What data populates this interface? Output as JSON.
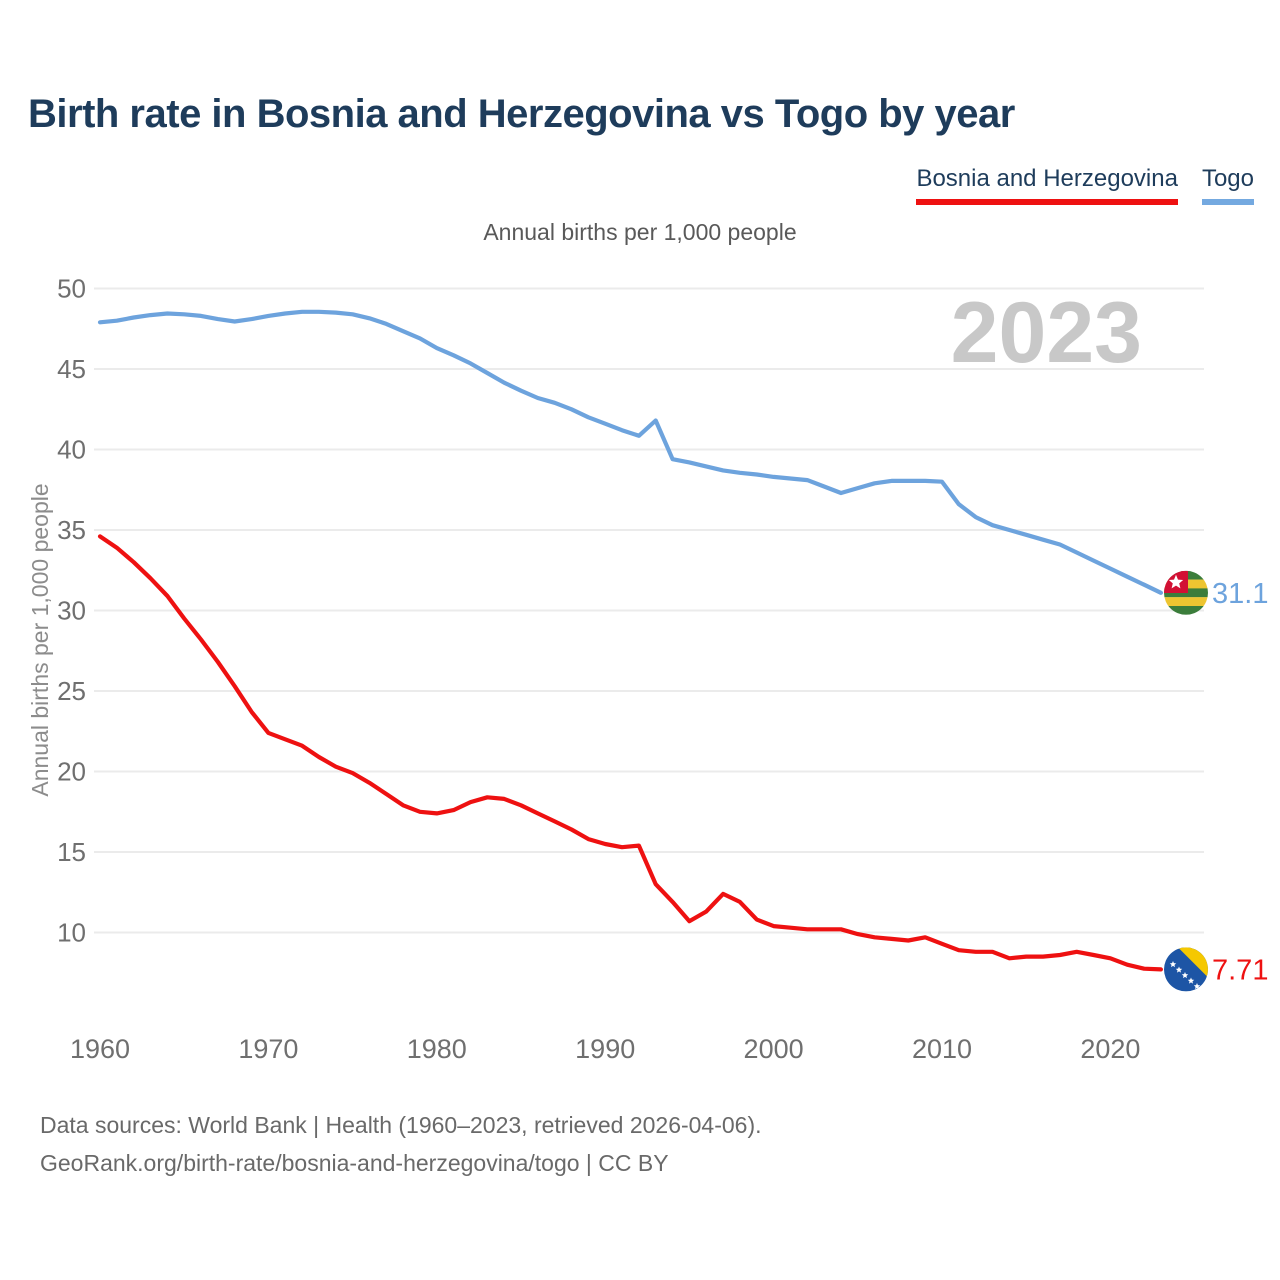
{
  "page": {
    "title": "Birth rate in Bosnia and Herzegovina vs Togo by year",
    "watermark": "2023"
  },
  "legend": {
    "items": [
      {
        "label": "Bosnia and Herzegovina",
        "color": "#ee1111"
      },
      {
        "label": "Togo",
        "color": "#74a9e0"
      }
    ]
  },
  "chart_data": {
    "type": "line",
    "title": "Annual births per 1,000 people",
    "ylabel": "Annual births per 1,000 people",
    "xlabel": "",
    "grid": true,
    "legend_position": "top-right",
    "xlim": [
      1960,
      2023
    ],
    "ylim": [
      10,
      50
    ],
    "y_ticks": [
      10,
      15,
      20,
      25,
      30,
      35,
      40,
      45,
      50
    ],
    "x_ticks": [
      1960,
      1970,
      1980,
      1990,
      2000,
      2010,
      2020
    ],
    "x": [
      1960,
      1961,
      1962,
      1963,
      1964,
      1965,
      1966,
      1967,
      1968,
      1969,
      1970,
      1971,
      1972,
      1973,
      1974,
      1975,
      1976,
      1977,
      1978,
      1979,
      1980,
      1981,
      1982,
      1983,
      1984,
      1985,
      1986,
      1987,
      1988,
      1989,
      1990,
      1991,
      1992,
      1993,
      1994,
      1995,
      1996,
      1997,
      1998,
      1999,
      2000,
      2001,
      2002,
      2003,
      2004,
      2005,
      2006,
      2007,
      2008,
      2009,
      2010,
      2011,
      2012,
      2013,
      2014,
      2015,
      2016,
      2017,
      2018,
      2019,
      2020,
      2021,
      2022,
      2023
    ],
    "series": [
      {
        "name": "Togo",
        "color": "#6da3dd",
        "end_label": "31.1",
        "flag": "togo",
        "values": [
          47.9,
          48.0,
          48.2,
          48.35,
          48.45,
          48.4,
          48.3,
          48.1,
          47.95,
          48.1,
          48.3,
          48.45,
          48.55,
          48.55,
          48.5,
          48.4,
          48.15,
          47.8,
          47.35,
          46.9,
          46.3,
          45.85,
          45.35,
          44.75,
          44.15,
          43.65,
          43.2,
          42.9,
          42.5,
          42.0,
          41.6,
          41.2,
          40.85,
          41.8,
          39.4,
          39.2,
          38.95,
          38.7,
          38.55,
          38.45,
          38.3,
          38.2,
          38.1,
          37.7,
          37.3,
          37.6,
          37.9,
          38.05,
          38.05,
          38.05,
          38.0,
          36.6,
          35.8,
          35.3,
          35.0,
          34.7,
          34.4,
          34.1,
          33.6,
          33.1,
          32.6,
          32.1,
          31.6,
          31.1
        ]
      },
      {
        "name": "Bosnia and Herzegovina",
        "color": "#ee1111",
        "end_label": "7.71",
        "flag": "bosnia",
        "values": [
          34.6,
          33.9,
          33.0,
          32.0,
          30.9,
          29.5,
          28.2,
          26.8,
          25.3,
          23.7,
          22.4,
          22.0,
          21.6,
          20.9,
          20.3,
          19.9,
          19.3,
          18.6,
          17.9,
          17.5,
          17.4,
          17.6,
          18.1,
          18.4,
          18.3,
          17.9,
          17.4,
          16.9,
          16.4,
          15.8,
          15.5,
          15.3,
          15.4,
          13.0,
          11.9,
          10.7,
          11.3,
          12.4,
          11.9,
          10.8,
          10.4,
          10.3,
          10.2,
          10.2,
          10.2,
          9.9,
          9.7,
          9.6,
          9.5,
          9.7,
          9.3,
          8.9,
          8.8,
          8.8,
          8.4,
          8.5,
          8.5,
          8.6,
          8.8,
          8.6,
          8.4,
          8.0,
          7.75,
          7.71
        ]
      }
    ],
    "flag_colors": {
      "togo_green": "#3b7d3b",
      "togo_yellow": "#edc531",
      "togo_red": "#d21034",
      "bosnia_blue": "#1d55a5",
      "bosnia_yellow": "#f5c800",
      "star_white": "#ffffff"
    },
    "style": {
      "grid_color": "#ebebeb",
      "tick_color": "#6f6f6f",
      "axis_title_color": "#8c8c8c",
      "watermark_color": "#c8c8c8"
    }
  },
  "footer": {
    "line1": "Data sources: World Bank | Health (1960–2023, retrieved 2026-04-06).",
    "line2": "GeoRank.org/birth-rate/bosnia-and-herzegovina/togo | CC BY"
  }
}
